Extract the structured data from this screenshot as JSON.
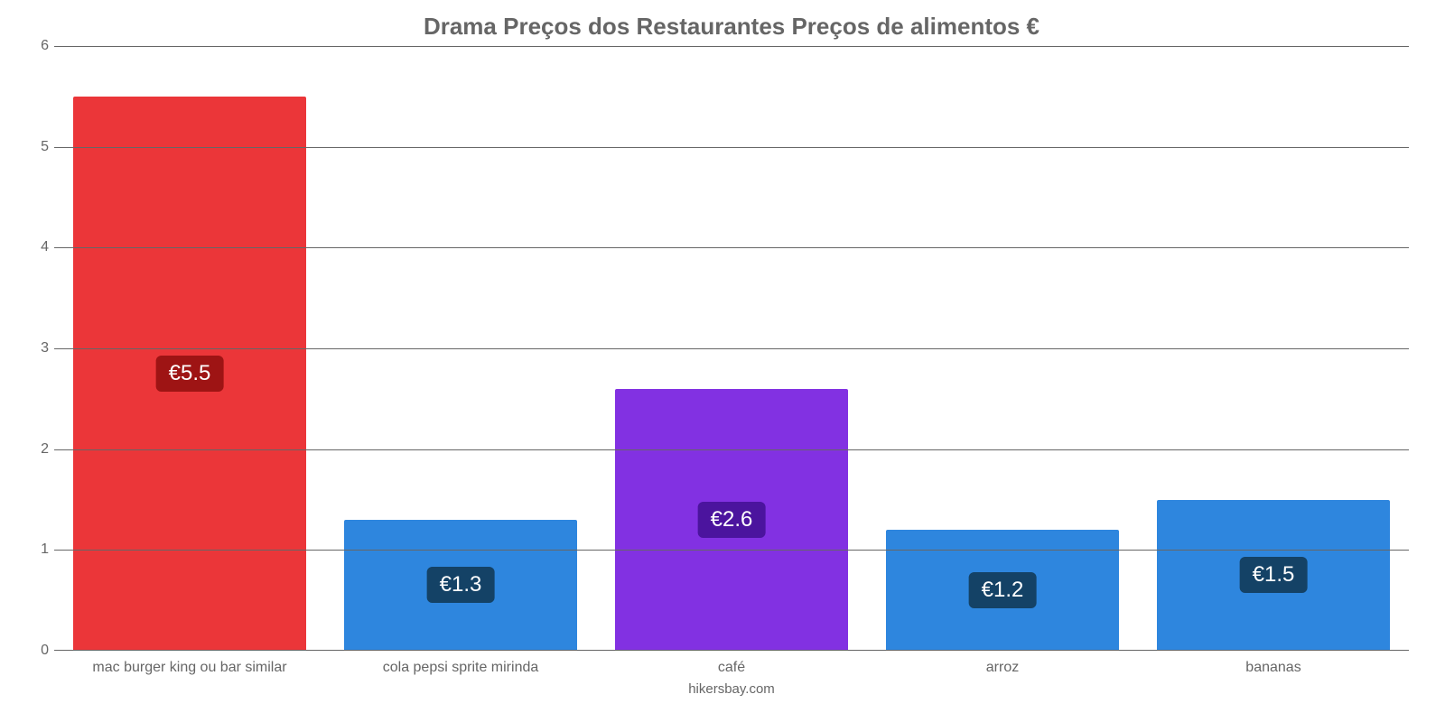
{
  "chart": {
    "type": "bar",
    "title": "Drama Preços dos Restaurantes Preços de alimentos €",
    "title_color": "#666666",
    "title_fontsize": 26,
    "credit": "hikersbay.com",
    "background_color": "#ffffff",
    "grid_color": "#666666",
    "axis_label_color": "#666666",
    "axis_fontsize": 16,
    "y": {
      "min": 0,
      "max": 6,
      "ticks": [
        0,
        1,
        2,
        3,
        4,
        5,
        6
      ]
    },
    "bar_width_pct": 86,
    "value_prefix": "€",
    "value_badge_fontsize": 24,
    "value_badge_text_color": "#ffffff",
    "categories": [
      "mac burger king ou bar similar",
      "cola pepsi sprite mirinda",
      "café",
      "arroz",
      "bananas"
    ],
    "values": [
      5.5,
      1.3,
      2.6,
      1.2,
      1.5
    ],
    "bar_colors": [
      "#eb3639",
      "#2e86de",
      "#8231e2",
      "#2e86de",
      "#2e86de"
    ],
    "badge_colors": [
      "#9e1414",
      "#144266",
      "#4b149e",
      "#144266",
      "#144266"
    ]
  }
}
